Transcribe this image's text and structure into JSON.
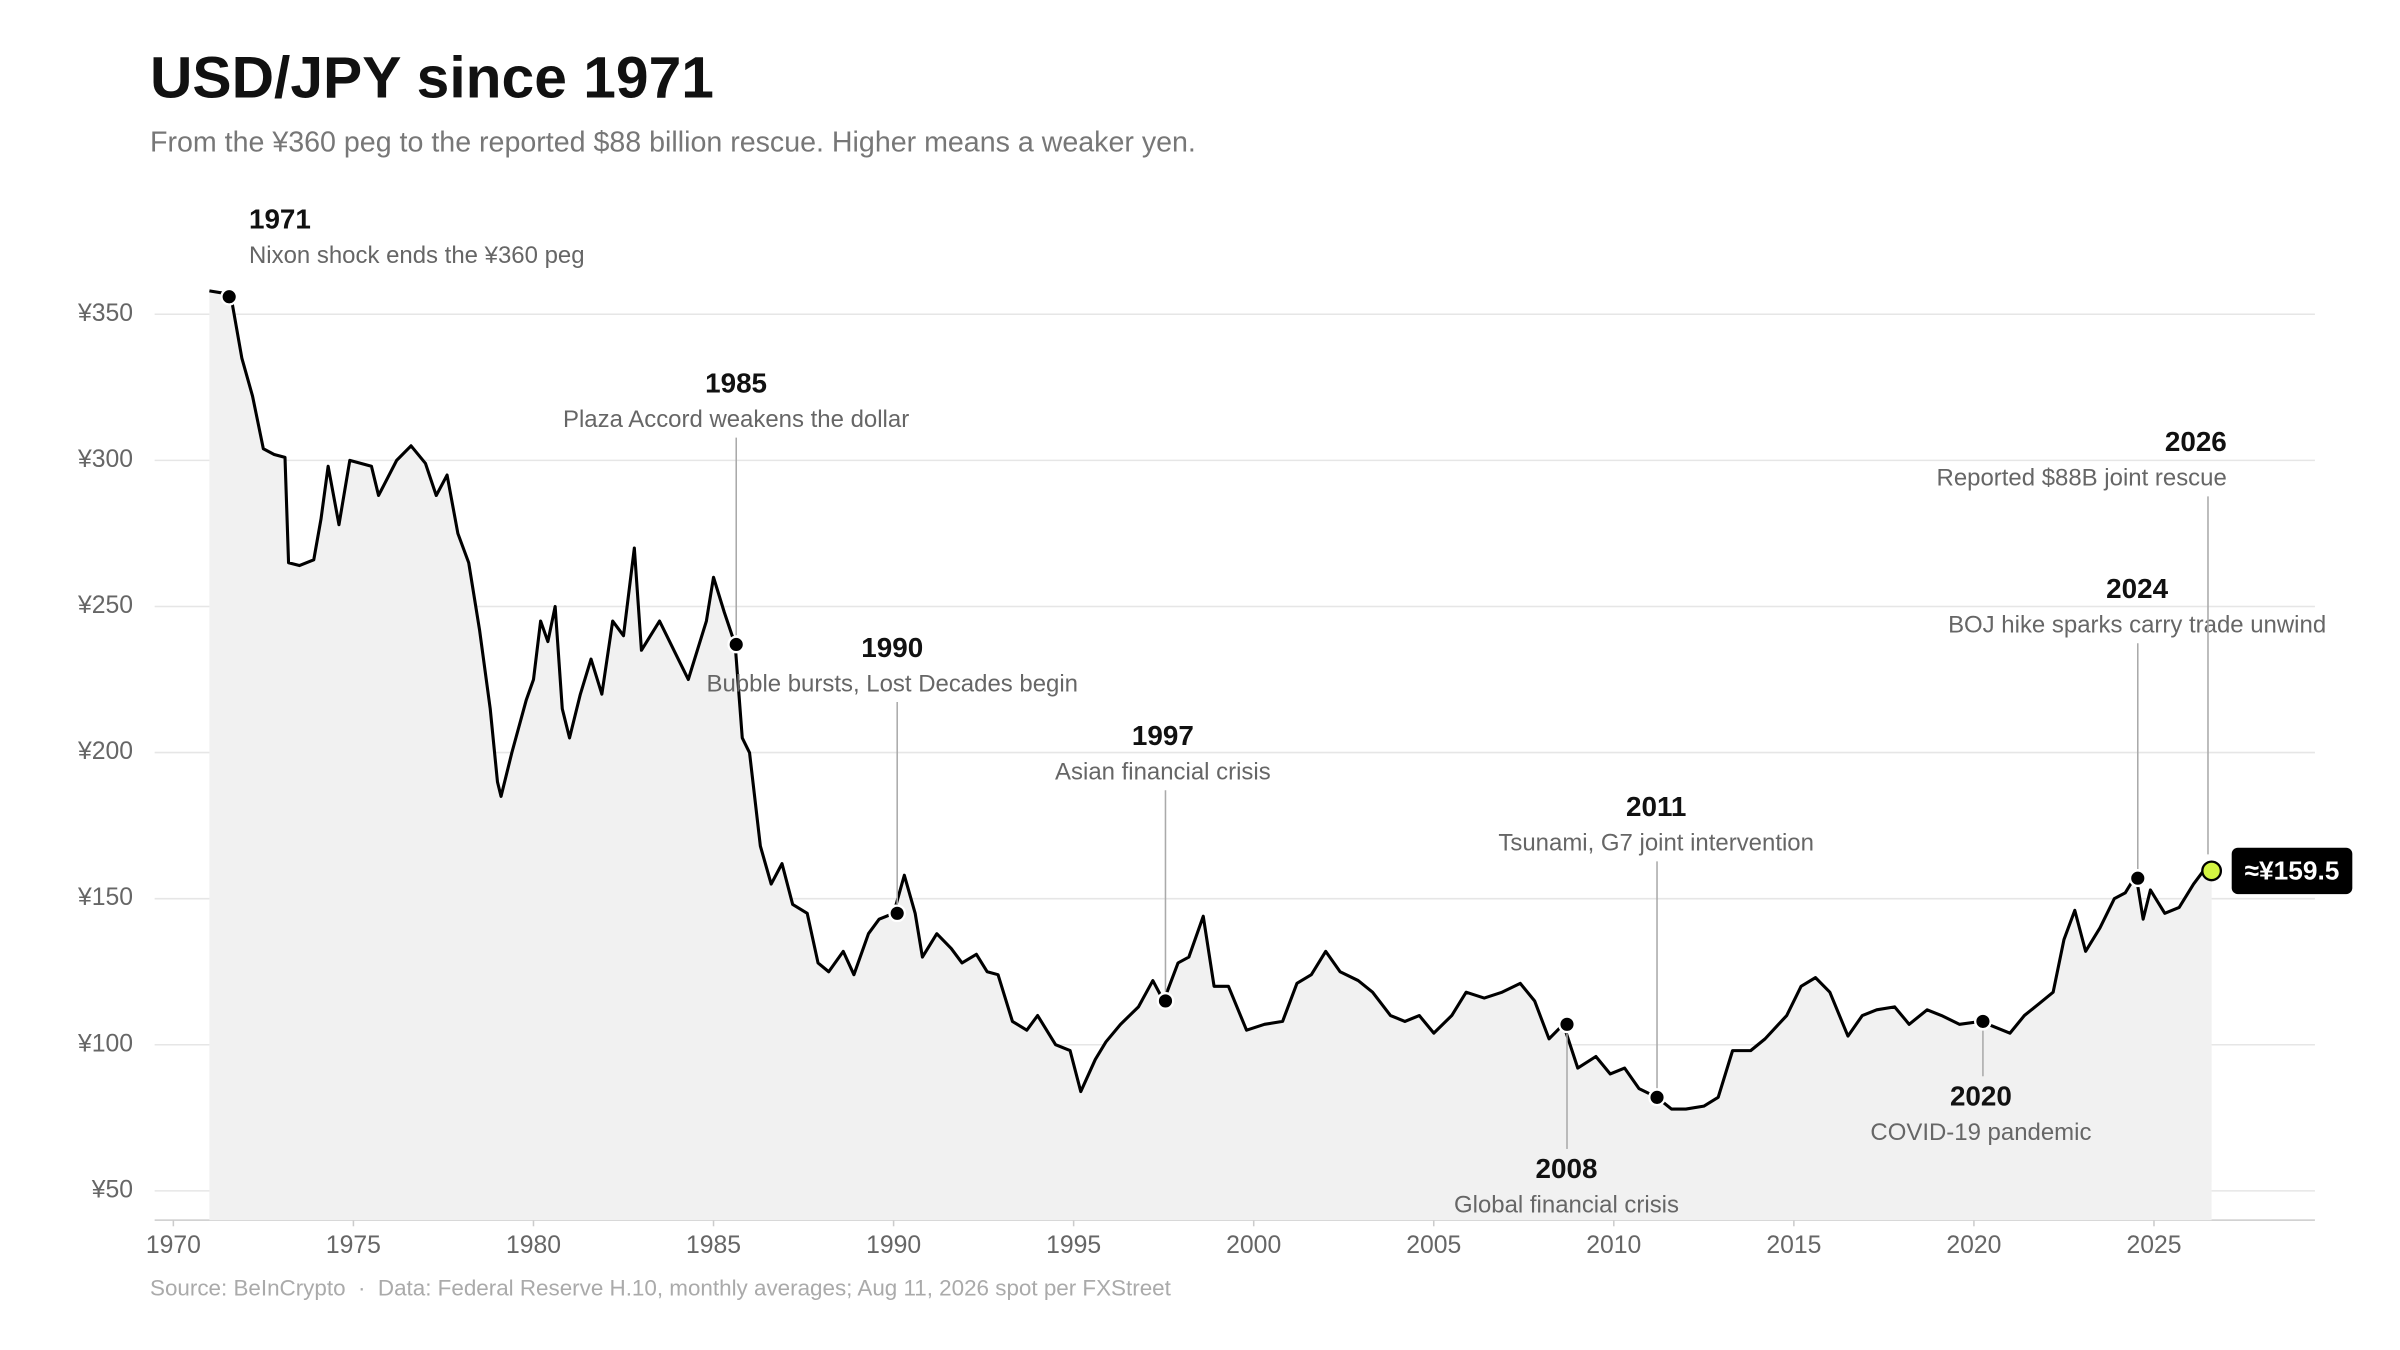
{
  "chart_data": {
    "type": "line",
    "title": "USD/JPY since 1971",
    "subtitle": "From the ¥360 peg to the reported $88 billion rescue. Higher means a weaker yen.",
    "source": "Source: BeInCrypto  ·  Data: Federal Reserve H.10, monthly averages; Aug 11, 2026 spot per FXStreet",
    "color": "#000000",
    "area_color": "#f1f1f1",
    "grid": true,
    "xlim": [
      1969.48,
      2029.47
    ],
    "ylim": [
      40,
      375
    ],
    "xticks": [
      1970,
      1975,
      1980,
      1985,
      1990,
      1995,
      2000,
      2005,
      2010,
      2015,
      2020,
      2025
    ],
    "yticks": [
      {
        "value": 50,
        "label": "¥50"
      },
      {
        "value": 100,
        "label": "¥100"
      },
      {
        "value": 150,
        "label": "¥150"
      },
      {
        "value": 200,
        "label": "¥200"
      },
      {
        "value": 250,
        "label": "¥250"
      },
      {
        "value": 300,
        "label": "¥300"
      },
      {
        "value": 350,
        "label": "¥350"
      }
    ],
    "x": [
      1971.0,
      1971.5,
      1971.6,
      1971.9,
      1972.2,
      1972.5,
      1972.8,
      1973.1,
      1973.2,
      1973.5,
      1973.9,
      1974.1,
      1974.3,
      1974.6,
      1974.9,
      1975.5,
      1975.7,
      1976.2,
      1976.6,
      1977.0,
      1977.3,
      1977.6,
      1977.9,
      1978.2,
      1978.5,
      1978.8,
      1979.0,
      1979.1,
      1979.4,
      1979.8,
      1980.0,
      1980.2,
      1980.4,
      1980.6,
      1980.8,
      1981.0,
      1981.3,
      1981.6,
      1981.9,
      1982.2,
      1982.5,
      1982.8,
      1983.0,
      1983.5,
      1983.9,
      1984.3,
      1984.8,
      1985.0,
      1985.3,
      1985.6,
      1985.8,
      1986.0,
      1986.3,
      1986.6,
      1986.9,
      1987.2,
      1987.6,
      1987.9,
      1988.2,
      1988.6,
      1988.9,
      1989.3,
      1989.6,
      1990.0,
      1990.3,
      1990.6,
      1990.8,
      1991.2,
      1991.6,
      1991.9,
      1992.3,
      1992.6,
      1992.9,
      1993.3,
      1993.7,
      1994.0,
      1994.5,
      1994.9,
      1995.2,
      1995.6,
      1995.9,
      1996.3,
      1996.8,
      1997.2,
      1997.5,
      1997.9,
      1998.2,
      1998.6,
      1998.9,
      1999.3,
      1999.8,
      2000.3,
      2000.8,
      2001.2,
      2001.6,
      2002.0,
      2002.4,
      2002.9,
      2003.3,
      2003.8,
      2004.2,
      2004.6,
      2005.0,
      2005.5,
      2005.9,
      2006.4,
      2006.9,
      2007.4,
      2007.8,
      2008.2,
      2008.6,
      2009.0,
      2009.5,
      2009.9,
      2010.3,
      2010.7,
      2011.2,
      2011.6,
      2012.0,
      2012.5,
      2012.9,
      2013.3,
      2013.8,
      2014.2,
      2014.8,
      2015.2,
      2015.6,
      2016.0,
      2016.5,
      2016.9,
      2017.3,
      2017.8,
      2018.2,
      2018.7,
      2019.1,
      2019.6,
      2020.2,
      2020.6,
      2021.0,
      2021.4,
      2021.8,
      2022.2,
      2022.5,
      2022.8,
      2023.1,
      2023.5,
      2023.9,
      2024.2,
      2024.5,
      2024.7,
      2024.9,
      2025.3,
      2025.7,
      2026.1,
      2026.4,
      2026.6
    ],
    "values": [
      358,
      357,
      356,
      335,
      322,
      304,
      302,
      301,
      265,
      264,
      266,
      280,
      298,
      278,
      300,
      298,
      288,
      300,
      305,
      299,
      288,
      295,
      275,
      265,
      242,
      215,
      190,
      185,
      200,
      218,
      225,
      245,
      238,
      250,
      215,
      205,
      220,
      232,
      220,
      245,
      240,
      270,
      235,
      245,
      235,
      225,
      245,
      260,
      248,
      237,
      205,
      200,
      168,
      155,
      162,
      148,
      145,
      128,
      125,
      132,
      124,
      138,
      143,
      145,
      158,
      145,
      130,
      138,
      133,
      128,
      131,
      125,
      124,
      108,
      105,
      110,
      100,
      98,
      84,
      95,
      101,
      107,
      113,
      122,
      115,
      128,
      130,
      144,
      120,
      120,
      105,
      107,
      108,
      121,
      124,
      132,
      125,
      122,
      118,
      110,
      108,
      110,
      104,
      110,
      118,
      116,
      118,
      121,
      115,
      102,
      107,
      92,
      96,
      90,
      92,
      85,
      82,
      78,
      78,
      79,
      82,
      98,
      98,
      102,
      110,
      120,
      123,
      118,
      103,
      110,
      112,
      113,
      107,
      112,
      110,
      107,
      108,
      106,
      104,
      110,
      114,
      118,
      136,
      146,
      132,
      140,
      150,
      152,
      158,
      143,
      153,
      145,
      147,
      155,
      160,
      159.5
    ],
    "annotations": [
      {
        "year": "1971",
        "text": "Nixon shock ends the ¥360 peg",
        "x": 1971.55,
        "y": 356
      },
      {
        "year": "1985",
        "text": "Plaza Accord weakens the dollar",
        "x": 1985.63,
        "y": 237
      },
      {
        "year": "1990",
        "text": "Bubble bursts, Lost Decades begin",
        "x": 1990.1,
        "y": 145
      },
      {
        "year": "1997",
        "text": "Asian financial crisis",
        "x": 1997.55,
        "y": 115
      },
      {
        "year": "2008",
        "text": "Global financial crisis",
        "x": 2008.7,
        "y": 107
      },
      {
        "year": "2011",
        "text": "Tsunami, G7 joint intervention",
        "x": 2011.2,
        "y": 82
      },
      {
        "year": "2020",
        "text": "COVID-19 pandemic",
        "x": 2020.25,
        "y": 108
      },
      {
        "year": "2024",
        "text": "BOJ hike sparks carry trade unwind",
        "x": 2024.55,
        "y": 157
      },
      {
        "year": "2026",
        "text": "Reported $88B joint rescue",
        "x": 2026.5,
        "y": 162
      }
    ],
    "current": {
      "x": 2026.6,
      "value": 159.5,
      "label": "≈¥159.5",
      "color": "#d4f542"
    }
  }
}
